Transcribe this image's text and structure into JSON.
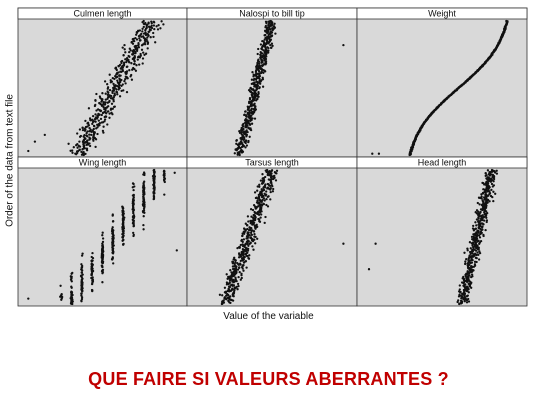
{
  "chart_data": {
    "type": "scatter",
    "ylabel": "Order of the data from text file",
    "xlabel": "Value of the variable",
    "panels": [
      {
        "title": "Culmen length",
        "row": 0,
        "col": 0
      },
      {
        "title": "Nalospi to bill tip",
        "row": 0,
        "col": 1
      },
      {
        "title": "Weight",
        "row": 0,
        "col": 2
      },
      {
        "title": "Wing length",
        "row": 1,
        "col": 0
      },
      {
        "title": "Tarsus length",
        "row": 1,
        "col": 1
      },
      {
        "title": "Head length",
        "row": 1,
        "col": 2
      }
    ],
    "panel_background": "#d9d9d9",
    "point_color": "#111111"
  },
  "caption": "QUE FAIRE SI VALEURS ABERRANTES ?"
}
